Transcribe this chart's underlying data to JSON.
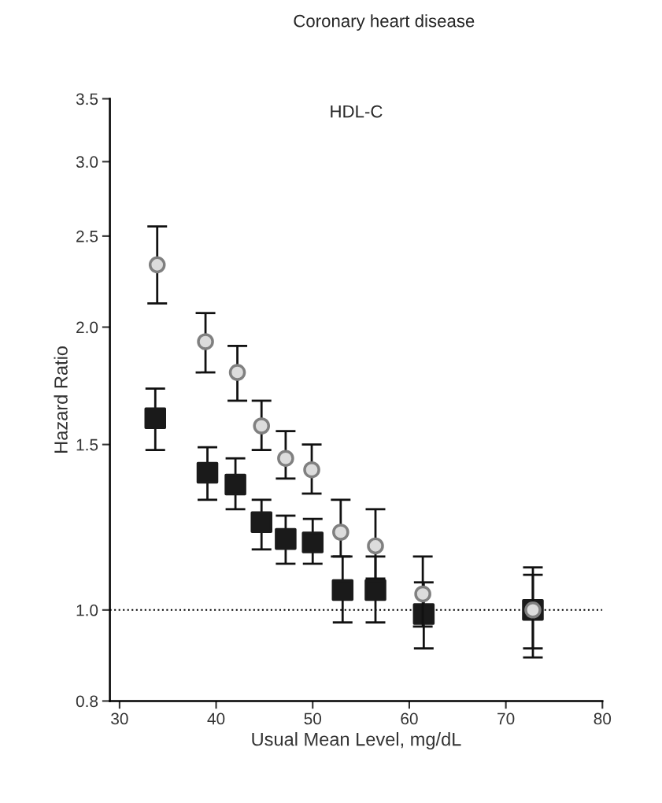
{
  "chart_data": {
    "type": "scatter",
    "title": "Coronary heart disease",
    "subtitle": "HDL-C",
    "xlabel": "Usual Mean Level, mg/dL",
    "ylabel": "Hazard Ratio",
    "log": "y",
    "xlim": [
      29,
      80
    ],
    "xticks": [
      30,
      40,
      50,
      60,
      70,
      80
    ],
    "ylim": [
      0.8,
      3.5
    ],
    "yticks": [
      {
        "value": 0.8,
        "label": "0.8"
      },
      {
        "value": 1.0,
        "label": "1.0"
      },
      {
        "value": 1.5,
        "label": "1.5"
      },
      {
        "value": 2.0,
        "label": "2.0"
      },
      {
        "value": 2.5,
        "label": "2.5"
      },
      {
        "value": 3.0,
        "label": "3.0"
      },
      {
        "value": 3.5,
        "label": "3.5"
      }
    ],
    "grid": false,
    "legend": false,
    "ref_lines": [
      {
        "axis": "y",
        "value": 1.0,
        "color": "#000000",
        "line_style": "dotted"
      }
    ],
    "series": [
      {
        "color": "#1a1a1a",
        "marker": "square",
        "x": [
          33.7,
          39.1,
          42.0,
          44.7,
          47.2,
          50.0,
          53.1,
          56.5,
          61.5,
          72.8
        ],
        "values": [
          1.6,
          1.4,
          1.36,
          1.24,
          1.19,
          1.18,
          1.05,
          1.05,
          0.99,
          1.0
        ],
        "errors": [
          [
            1.48,
            1.72
          ],
          [
            1.31,
            1.49
          ],
          [
            1.28,
            1.45
          ],
          [
            1.16,
            1.31
          ],
          [
            1.12,
            1.26
          ],
          [
            1.12,
            1.25
          ],
          [
            0.97,
            1.14
          ],
          [
            0.97,
            1.14
          ],
          [
            0.91,
            1.07
          ],
          [
            0.91,
            1.09
          ]
        ]
      },
      {
        "color": "#dcdcdc",
        "marker": "circle",
        "x": [
          33.9,
          38.9,
          42.2,
          44.7,
          47.2,
          49.9,
          52.9,
          56.5,
          61.4,
          72.8
        ],
        "values": [
          2.33,
          1.93,
          1.79,
          1.57,
          1.45,
          1.41,
          1.21,
          1.17,
          1.04,
          1.0
        ],
        "errors": [
          [
            2.12,
            2.56
          ],
          [
            1.79,
            2.07
          ],
          [
            1.67,
            1.91
          ],
          [
            1.48,
            1.67
          ],
          [
            1.38,
            1.55
          ],
          [
            1.33,
            1.5
          ],
          [
            1.14,
            1.31
          ],
          [
            1.08,
            1.28
          ],
          [
            0.96,
            1.14
          ],
          [
            0.89,
            1.11
          ]
        ]
      }
    ]
  }
}
